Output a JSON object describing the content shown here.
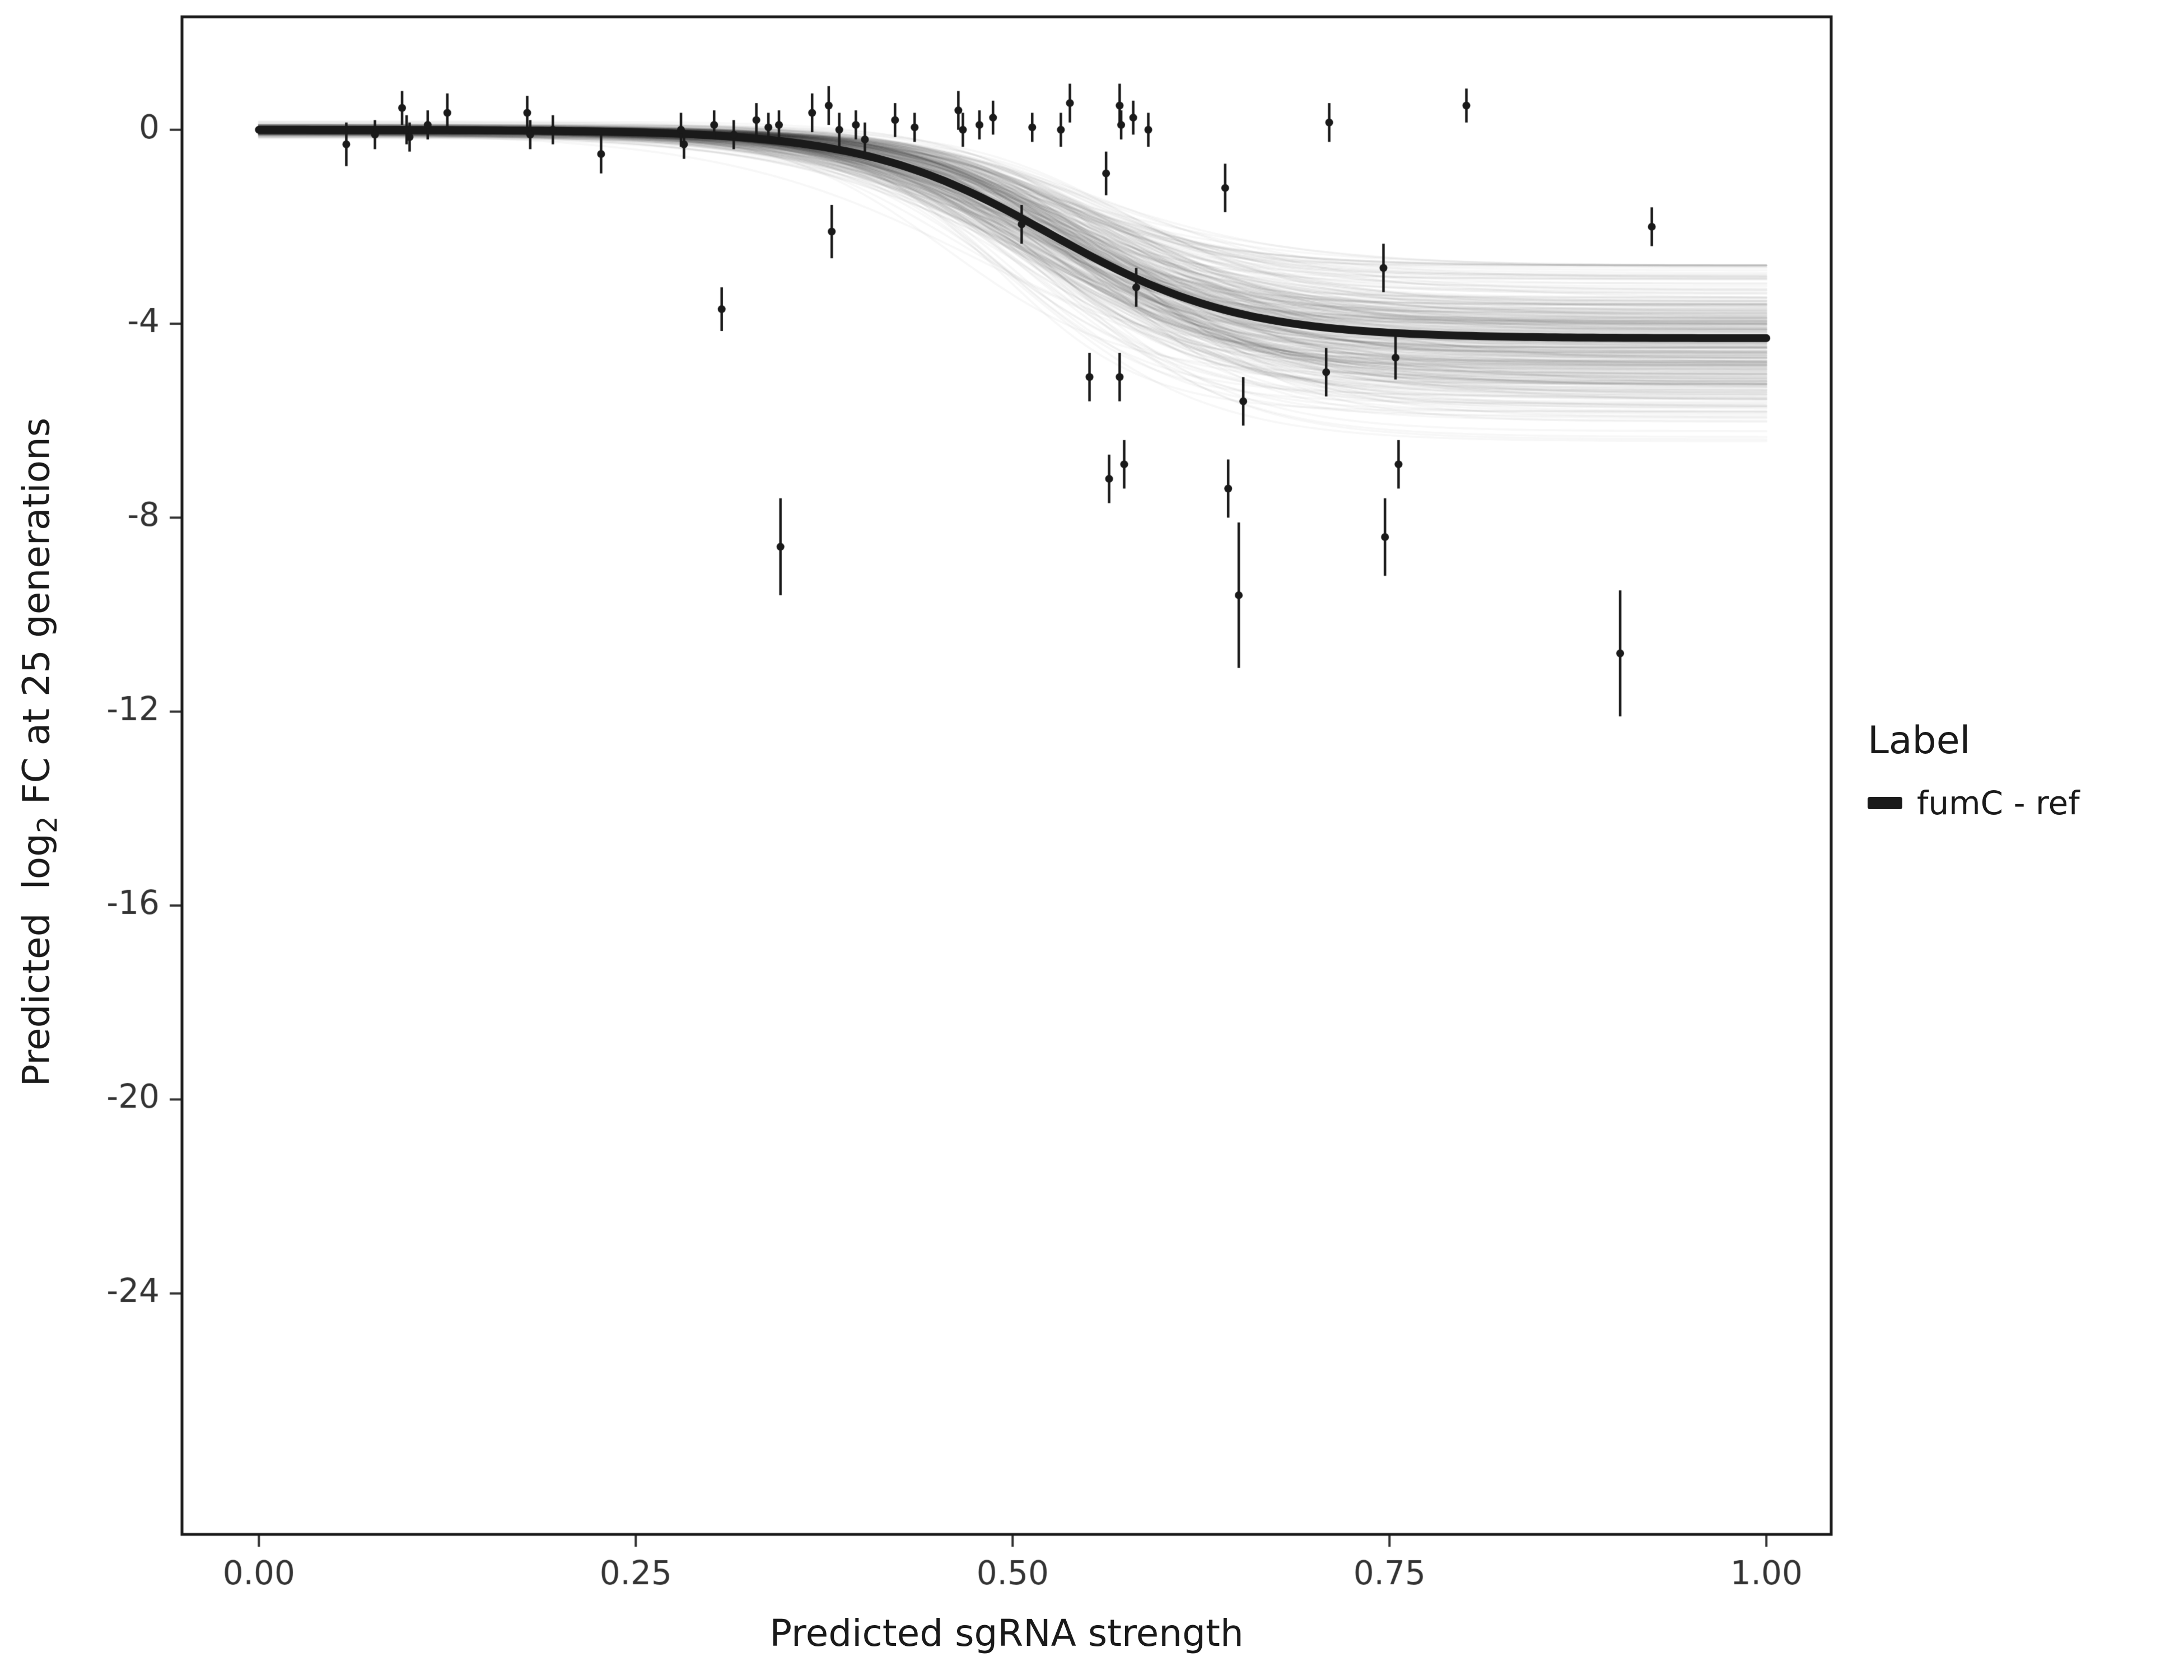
{
  "figure": {
    "background": "#ffffff",
    "xlabel": "Predicted sgRNA strength",
    "ylabel_pre": "Predicted  log",
    "ylabel_sub": "2",
    "ylabel_post": " FC at 25 generations",
    "legend": {
      "title": "Label",
      "entries": [
        {
          "label": "fumC - ref",
          "color": "#1a1a1a"
        }
      ]
    }
  },
  "chart_data": {
    "type": "scatter",
    "title": "",
    "xlabel": "Predicted sgRNA strength",
    "ylabel": "Predicted log2 FC at 25 generations",
    "xlim": [
      -0.051,
      1.043
    ],
    "ylim": [
      -28.97,
      2.33
    ],
    "grid": false,
    "legend_position": "right",
    "x_ticks": {
      "values": [
        0.0,
        0.25,
        0.5,
        0.75,
        1.0
      ],
      "labels": [
        "0.00",
        "0.25",
        "0.50",
        "0.75",
        "1.00"
      ]
    },
    "y_ticks": {
      "values": [
        0,
        -4,
        -8,
        -12,
        -16,
        -20,
        -24
      ],
      "labels": [
        "0",
        "-4",
        "-8",
        "-12",
        "-16",
        "-20",
        "-24"
      ]
    },
    "point_color": "#1a1a1a",
    "curve_color": "#1a1a1a",
    "fit_curve": {
      "upper": 0,
      "lower": -4.3,
      "midpoint": 0.525,
      "steepness": 16
    },
    "ensemble": {
      "n_draws": 350,
      "alpha": 0.035,
      "seed": 42,
      "lower_mean": -4.5,
      "lower_sd": 0.85,
      "lower_min": -6.9,
      "lower_max": -2.8,
      "midpoint_mean": 0.53,
      "midpoint_sd": 0.022,
      "steepness_mean": 16,
      "steepness_sd": 2.5,
      "upper_sd": 0.06
    },
    "points": [
      {
        "x": 0.058,
        "y": -0.3,
        "e": 0.45
      },
      {
        "x": 0.077,
        "y": -0.1,
        "e": 0.3
      },
      {
        "x": 0.095,
        "y": 0.45,
        "e": 0.35
      },
      {
        "x": 0.098,
        "y": 0.0,
        "e": 0.3
      },
      {
        "x": 0.1,
        "y": -0.15,
        "e": 0.3
      },
      {
        "x": 0.112,
        "y": 0.1,
        "e": 0.3
      },
      {
        "x": 0.125,
        "y": 0.35,
        "e": 0.4
      },
      {
        "x": 0.178,
        "y": 0.35,
        "e": 0.35
      },
      {
        "x": 0.18,
        "y": -0.1,
        "e": 0.3
      },
      {
        "x": 0.195,
        "y": 0.0,
        "e": 0.3
      },
      {
        "x": 0.227,
        "y": -0.5,
        "e": 0.4
      },
      {
        "x": 0.28,
        "y": 0.0,
        "e": 0.35
      },
      {
        "x": 0.282,
        "y": -0.3,
        "e": 0.3
      },
      {
        "x": 0.302,
        "y": 0.1,
        "e": 0.3
      },
      {
        "x": 0.307,
        "y": -3.7,
        "e": 0.45
      },
      {
        "x": 0.315,
        "y": -0.1,
        "e": 0.3
      },
      {
        "x": 0.33,
        "y": 0.2,
        "e": 0.35
      },
      {
        "x": 0.338,
        "y": 0.05,
        "e": 0.3
      },
      {
        "x": 0.345,
        "y": 0.1,
        "e": 0.3
      },
      {
        "x": 0.346,
        "y": -8.6,
        "e": 1.0
      },
      {
        "x": 0.367,
        "y": 0.35,
        "e": 0.4
      },
      {
        "x": 0.378,
        "y": 0.5,
        "e": 0.4
      },
      {
        "x": 0.38,
        "y": -2.1,
        "e": 0.55
      },
      {
        "x": 0.385,
        "y": 0.0,
        "e": 0.35
      },
      {
        "x": 0.396,
        "y": 0.1,
        "e": 0.3
      },
      {
        "x": 0.402,
        "y": -0.2,
        "e": 0.35
      },
      {
        "x": 0.422,
        "y": 0.2,
        "e": 0.35
      },
      {
        "x": 0.435,
        "y": 0.05,
        "e": 0.3
      },
      {
        "x": 0.464,
        "y": 0.4,
        "e": 0.4
      },
      {
        "x": 0.467,
        "y": 0.0,
        "e": 0.35
      },
      {
        "x": 0.478,
        "y": 0.1,
        "e": 0.3
      },
      {
        "x": 0.487,
        "y": 0.25,
        "e": 0.35
      },
      {
        "x": 0.506,
        "y": -1.95,
        "e": 0.4
      },
      {
        "x": 0.513,
        "y": 0.05,
        "e": 0.3
      },
      {
        "x": 0.532,
        "y": 0.0,
        "e": 0.35
      },
      {
        "x": 0.538,
        "y": 0.55,
        "e": 0.4
      },
      {
        "x": 0.551,
        "y": -5.1,
        "e": 0.5
      },
      {
        "x": 0.562,
        "y": -0.9,
        "e": 0.45
      },
      {
        "x": 0.564,
        "y": -7.2,
        "e": 0.5
      },
      {
        "x": 0.571,
        "y": 0.5,
        "e": 0.45
      },
      {
        "x": 0.572,
        "y": 0.1,
        "e": 0.3
      },
      {
        "x": 0.571,
        "y": -5.1,
        "e": 0.5
      },
      {
        "x": 0.574,
        "y": -6.9,
        "e": 0.5
      },
      {
        "x": 0.58,
        "y": 0.25,
        "e": 0.35
      },
      {
        "x": 0.582,
        "y": -3.25,
        "e": 0.4
      },
      {
        "x": 0.59,
        "y": 0.0,
        "e": 0.35
      },
      {
        "x": 0.641,
        "y": -1.2,
        "e": 0.5
      },
      {
        "x": 0.643,
        "y": -7.4,
        "e": 0.6
      },
      {
        "x": 0.653,
        "y": -5.6,
        "e": 0.5
      },
      {
        "x": 0.65,
        "y": -9.6,
        "e": 1.5
      },
      {
        "x": 0.71,
        "y": 0.15,
        "e": 0.4
      },
      {
        "x": 0.708,
        "y": -5.0,
        "e": 0.5
      },
      {
        "x": 0.746,
        "y": -2.85,
        "e": 0.5
      },
      {
        "x": 0.747,
        "y": -8.4,
        "e": 0.8
      },
      {
        "x": 0.754,
        "y": -4.7,
        "e": 0.45
      },
      {
        "x": 0.756,
        "y": -6.9,
        "e": 0.5
      },
      {
        "x": 0.801,
        "y": 0.5,
        "e": 0.35
      },
      {
        "x": 0.903,
        "y": -10.8,
        "e": 1.3
      },
      {
        "x": 0.924,
        "y": -2.0,
        "e": 0.4
      }
    ]
  }
}
